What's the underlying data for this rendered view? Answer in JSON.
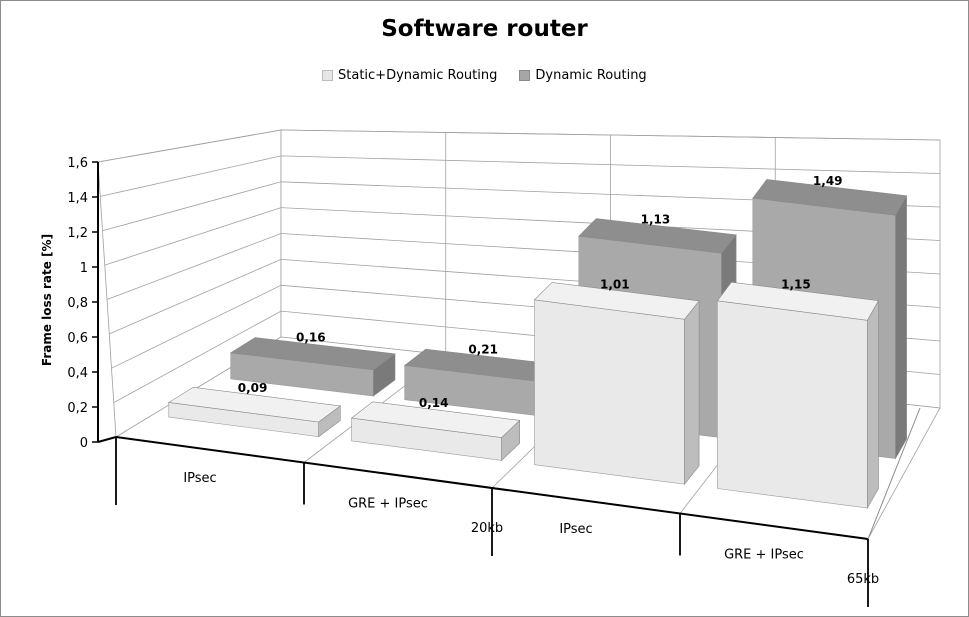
{
  "chart_data": {
    "type": "bar",
    "title": "Software router",
    "ylabel": "Frame loss rate [%]",
    "xlabel": "",
    "ylim": [
      0,
      1.6
    ],
    "yticks": [
      "0",
      "0,2",
      "0,4",
      "0,6",
      "0,8",
      "1",
      "1,2",
      "1,4",
      "1,6"
    ],
    "grid": true,
    "legend_position": "top",
    "categories": [
      "IPsec",
      "GRE + IPsec",
      "IPsec",
      "GRE + IPsec"
    ],
    "groups": [
      "20kb",
      "65kb"
    ],
    "series": [
      {
        "name": "Static+Dynamic Routing",
        "values": [
          0.09,
          0.14,
          1.01,
          1.15
        ],
        "labels": [
          "0,09",
          "0,14",
          "1,01",
          "1,15"
        ],
        "color": "#e6e6e6"
      },
      {
        "name": "Dynamic Routing",
        "values": [
          0.16,
          0.21,
          1.13,
          1.49
        ],
        "labels": [
          "0,16",
          "0,21",
          "1,13",
          "1,49"
        ],
        "color": "#a6a6a6"
      }
    ]
  }
}
